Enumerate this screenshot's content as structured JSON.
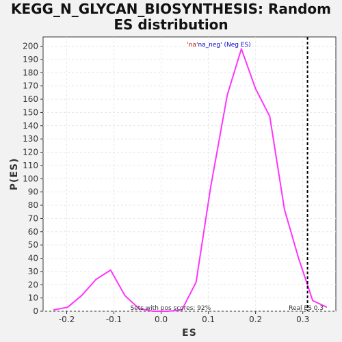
{
  "chart_data": {
    "type": "line",
    "title_line1": "KEGG_N_GLYCAN_BIOSYNTHESIS: Random",
    "title_line2": "ES distribution",
    "xlabel": "ES",
    "ylabel": "P(ES)",
    "xlim": [
      -0.25,
      0.37
    ],
    "ylim": [
      0,
      207
    ],
    "x_ticks": [
      -0.2,
      -0.1,
      0.0,
      0.1,
      0.2,
      0.3
    ],
    "x_tick_labels": [
      "-0.2",
      "-0.1",
      "0.0",
      "0.1",
      "0.2",
      "0.3"
    ],
    "y_ticks": [
      0,
      10,
      20,
      30,
      40,
      50,
      60,
      70,
      80,
      90,
      100,
      110,
      120,
      130,
      140,
      150,
      160,
      170,
      180,
      190,
      200
    ],
    "grid": true,
    "legend": {
      "text_prefix": "'na'",
      "text_rest": "na_neg' (Neg ES)",
      "prefix_color": "#cc0000",
      "rest_color": "#0000cc",
      "placement": "top-center"
    },
    "series": [
      {
        "color": "#ff33ff",
        "x": [
          -0.228,
          -0.198,
          -0.168,
          -0.138,
          -0.107,
          -0.077,
          -0.047,
          -0.017,
          0.014,
          0.044,
          0.074,
          0.105,
          0.14,
          0.17,
          0.2,
          0.23,
          0.261,
          0.291,
          0.321,
          0.351
        ],
        "y": [
          1,
          3,
          12,
          24,
          31,
          12,
          2,
          0,
          0,
          1,
          22,
          94,
          163,
          198,
          168,
          147,
          77,
          40,
          8,
          3
        ]
      }
    ],
    "real_es": {
      "value": 0.31,
      "label": "Real ES 0.3",
      "color": "#000000"
    },
    "annotation": "Sets with pos scores: 92%",
    "colors": {
      "plot_background": "#ffffff",
      "page_background": "#f2f2f2",
      "grid": "#e6e6e6",
      "axis": "#333333"
    }
  }
}
